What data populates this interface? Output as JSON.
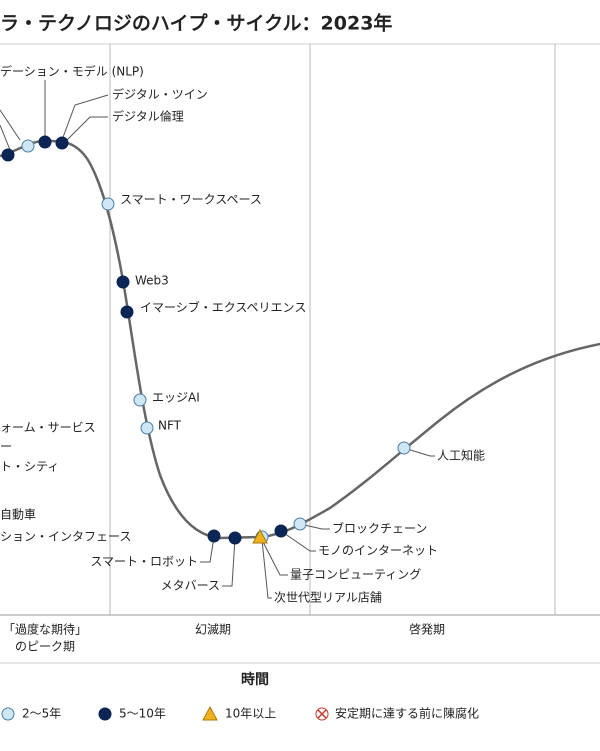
{
  "title": "ラ・テクノロジのハイプ・サイクル：2023年",
  "nodes": [
    {
      "label": "デーション・モデル (NLP)"
    },
    {
      "label": "デジタル・ツイン"
    },
    {
      "label": "デジタル倫理"
    },
    {
      "label": "スマート・ワークスペース"
    },
    {
      "label": "Web3"
    },
    {
      "label": "イマーシブ・エクスペリエンス"
    },
    {
      "label": "エッジAI"
    },
    {
      "label": "NFT"
    },
    {
      "label": "ォーム・サービス"
    },
    {
      "label": "ー"
    },
    {
      "label": "ト・シティ"
    },
    {
      "label": "自動車"
    },
    {
      "label": "ション・インタフェース"
    },
    {
      "label": "スマート・ロボット"
    },
    {
      "label": "メタバース"
    },
    {
      "label": "量子コンピューティング"
    },
    {
      "label": "次世代型リアル店舗"
    },
    {
      "label": "モノのインターネット"
    },
    {
      "label": "ブロックチェーン"
    },
    {
      "label": "人工知能"
    }
  ],
  "phases": [
    {
      "label": "「過度な期待」"
    },
    {
      "label": "のピーク期"
    },
    {
      "label": "幻滅期"
    },
    {
      "label": "啓発期"
    }
  ],
  "axis_label": "時間",
  "legend": [
    {
      "label": "2〜5年"
    },
    {
      "label": "5〜10年"
    },
    {
      "label": "10年以上"
    },
    {
      "label": "安定期に達する前に陳腐化"
    }
  ]
}
